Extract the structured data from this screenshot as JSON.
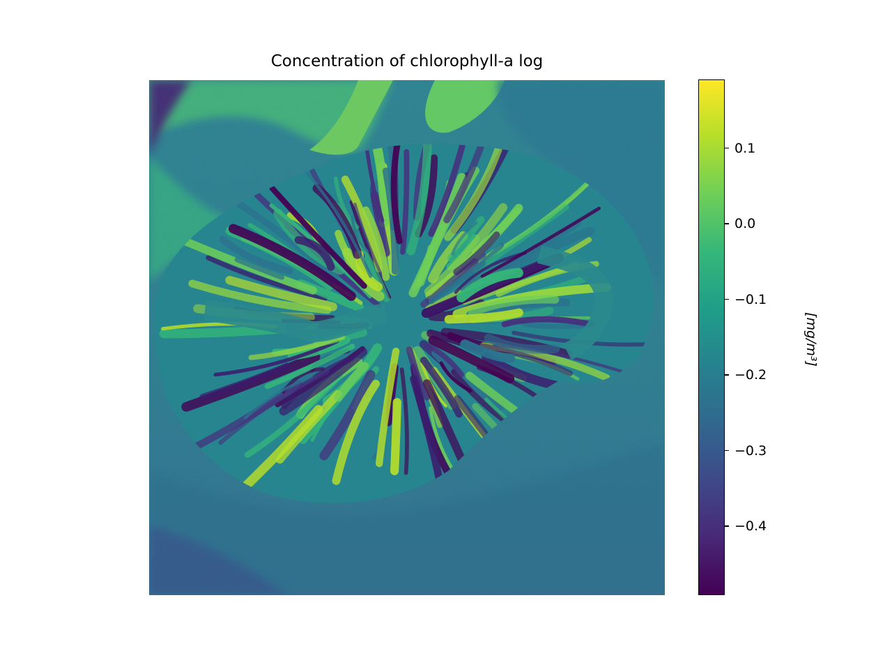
{
  "chart_data": {
    "type": "heatmap",
    "title": "Concentration of chlorophyll-a log",
    "colormap": "viridis",
    "colorbar": {
      "label": "[mg/m³]",
      "range": [
        -0.49,
        0.19
      ],
      "ticks": [
        {
          "value": 0.1,
          "label": "0.1"
        },
        {
          "value": 0.0,
          "label": "0.0"
        },
        {
          "value": -0.1,
          "label": "−0.1"
        },
        {
          "value": -0.2,
          "label": "−0.2"
        },
        {
          "value": -0.3,
          "label": "−0.3"
        },
        {
          "value": -0.4,
          "label": "−0.4"
        }
      ]
    },
    "axes_visible": false
  },
  "colors": {
    "viridis_low": "#440154",
    "viridis_mid": "#21918c",
    "viridis_high": "#fde725",
    "sea_background": "#2a7a8c",
    "island_base": "#24878d",
    "plume_bright": "#4fc06a",
    "ridge_dark": "#3b1c6e",
    "ridge_bright": "#9bd83e"
  }
}
